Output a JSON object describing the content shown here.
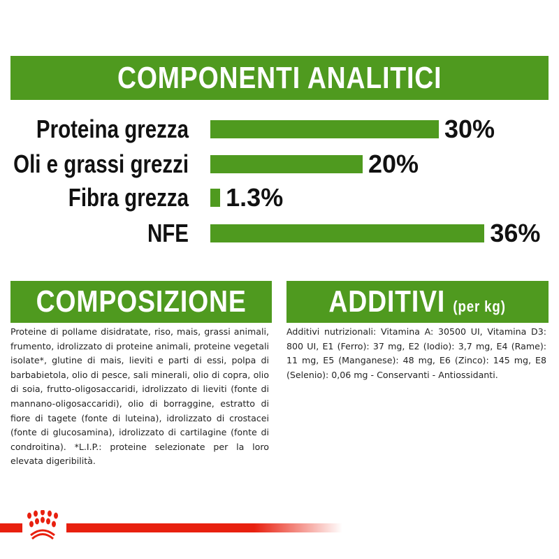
{
  "header": {
    "title": "COMPONENTI ANALITICI"
  },
  "analytics": [
    {
      "label": "Proteina grezza",
      "value": "30%",
      "percent": 30
    },
    {
      "label": "Oli e grassi grezzi",
      "value": "20%",
      "percent": 20
    },
    {
      "label": "Fibra grezza",
      "value": "1.3%",
      "percent": 1.3
    },
    {
      "label": "NFE",
      "value": "36%",
      "percent": 36
    }
  ],
  "composition": {
    "title": "COMPOSIZIONE",
    "text": "Proteine di pollame disidratate, riso, mais, grassi animali, frumento, idrolizzato di proteine animali, proteine vegetali isolate*, glutine di mais, lieviti e parti di essi, polpa di barbabietola, olio di pesce, sali minerali, olio di copra, olio di soia, frutto-oligosaccaridi, idrolizzato di lieviti (fonte di mannano-oligosaccaridi), olio di borraggine, estratto di fiore di tagete (fonte di luteina), idrolizzato di crostacei (fonte di glucosamina), idrolizzato di cartilagine (fonte di condroitina). *L.I.P.: proteine selezionate per la loro elevata digeribilità."
  },
  "additives": {
    "title": "ADDITIVI",
    "subtitle": "(per kg)",
    "text": "Additivi nutrizionali: Vitamina A: 30500 UI, Vitamina D3: 800 UI, E1 (Ferro): 37 mg, E2 (Iodio): 3,7 mg, E4 (Rame): 11 mg, E5 (Manganese): 48 mg, E6 (Zinco): 145 mg, E8 (Selenio): 0,06 mg - Conservanti - Antiossidanti."
  },
  "colors": {
    "green": "#4f9a1f",
    "red": "#e8200f"
  },
  "logo": {
    "icon": "royal-canin-crown-icon"
  }
}
